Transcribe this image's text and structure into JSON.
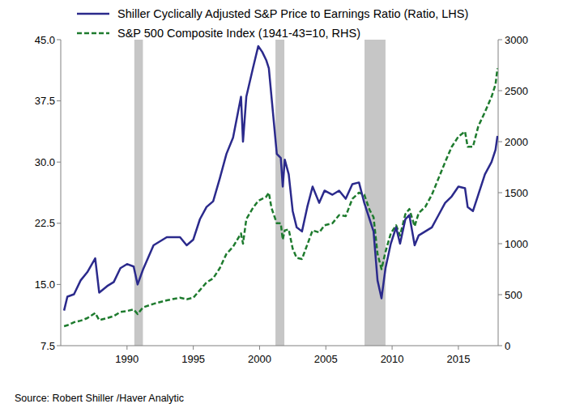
{
  "chart_data": {
    "type": "line",
    "source": "Source:  Robert Shiller /Haver Analytic",
    "legend": "top left",
    "grid": false,
    "x": [
      1985.25,
      1985.5,
      1986,
      1986.5,
      1987,
      1987.6,
      1987.9,
      1988.5,
      1989,
      1989.5,
      1990,
      1990.5,
      1990.8,
      1991.2,
      1992,
      1993,
      1994,
      1994.5,
      1995,
      1995.5,
      1996,
      1996.5,
      1997,
      1997.5,
      1998,
      1998.6,
      1998.75,
      1999,
      1999.5,
      1999.9,
      2000.2,
      2000.5,
      2000.7,
      2000.9,
      2001.3,
      2001.6,
      2001.75,
      2001.9,
      2002.2,
      2002.5,
      2002.8,
      2003.2,
      2003.6,
      2004,
      2004.5,
      2004.9,
      2005.5,
      2006,
      2006.5,
      2007,
      2007.5,
      2007.9,
      2008.3,
      2008.6,
      2008.9,
      2009.2,
      2009.5,
      2009.9,
      2010.3,
      2010.6,
      2011,
      2011.3,
      2011.7,
      2012,
      2012.5,
      2013,
      2013.5,
      2014,
      2014.5,
      2015,
      2015.5,
      2015.7,
      2016.1,
      2016.5,
      2017,
      2017.5,
      2017.8,
      2017.95
    ],
    "xlim": [
      1985,
      2018
    ],
    "xticks": [
      1990,
      1995,
      2000,
      2005,
      2010,
      2015
    ],
    "ylim": [
      7.5,
      45
    ],
    "yticks": [
      7.5,
      {
        "value": 15,
        "label": "15.0"
      },
      22.5,
      {
        "value": 30,
        "label": "30.0"
      },
      37.5,
      {
        "value": 45,
        "label": "45.0"
      }
    ],
    "y2lim": [
      0,
      3000
    ],
    "y2ticks": [
      0,
      500,
      1000,
      1500,
      2000,
      2500,
      3000
    ],
    "shaded_periods": [
      [
        1990.55,
        1991.2
      ],
      [
        2001.2,
        2001.87
      ],
      [
        2007.92,
        2009.5
      ]
    ],
    "series": [
      {
        "name": "Shiller Cyclically Adjusted S&P Price to Earnings Ratio (Ratio, LHS)",
        "color": "#2b2a8c",
        "line_style": "solid",
        "axis": "y",
        "values": [
          11.8,
          13.5,
          13.8,
          15.5,
          16.5,
          18.2,
          14.0,
          14.8,
          15.3,
          17.0,
          17.5,
          17.2,
          15.0,
          16.8,
          19.8,
          20.8,
          20.8,
          19.8,
          20.5,
          23.0,
          24.5,
          25.2,
          28.0,
          31.0,
          33.0,
          38.0,
          32.5,
          38.0,
          41.5,
          44.2,
          43.5,
          42.5,
          41.5,
          38.0,
          31.0,
          30.5,
          27.0,
          30.3,
          28.5,
          24.0,
          22.0,
          21.5,
          24.5,
          27.0,
          25.0,
          26.5,
          26.0,
          26.5,
          25.5,
          27.3,
          27.5,
          25.0,
          23.0,
          21.5,
          15.5,
          13.3,
          17.0,
          20.0,
          22.0,
          20.0,
          23.0,
          23.5,
          19.8,
          21.0,
          21.5,
          22.0,
          23.5,
          25.0,
          25.8,
          27.0,
          26.8,
          24.5,
          24.0,
          26.0,
          28.5,
          30.0,
          31.5,
          33.2
        ]
      },
      {
        "name": "S&P 500 Composite Index (1941-43=10, RHS)",
        "color": "#1e7b2e",
        "line_style": "dashed",
        "axis": "y2",
        "values": [
          190,
          200,
          230,
          245,
          270,
          320,
          250,
          270,
          290,
          330,
          340,
          355,
          310,
          375,
          410,
          445,
          470,
          455,
          470,
          545,
          620,
          660,
          760,
          900,
          970,
          1100,
          1000,
          1240,
          1350,
          1420,
          1440,
          1460,
          1500,
          1350,
          1200,
          1200,
          1040,
          1130,
          1140,
          950,
          860,
          850,
          990,
          1130,
          1110,
          1180,
          1200,
          1280,
          1270,
          1440,
          1500,
          1480,
          1330,
          1260,
          900,
          750,
          920,
          1100,
          1180,
          1080,
          1290,
          1340,
          1170,
          1300,
          1360,
          1480,
          1640,
          1800,
          1950,
          2050,
          2100,
          1950,
          1950,
          2150,
          2290,
          2440,
          2560,
          2720
        ]
      }
    ]
  }
}
